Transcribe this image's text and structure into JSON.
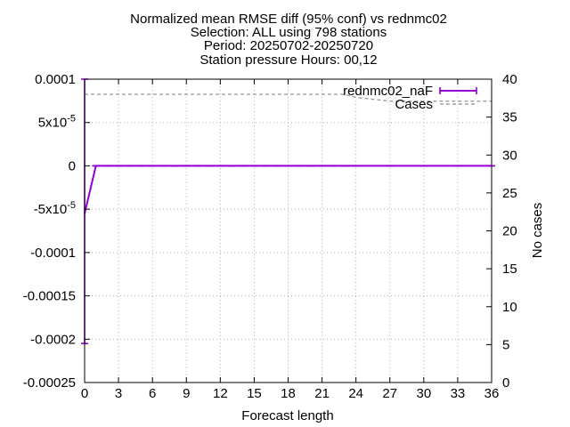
{
  "chart_data": {
    "type": "line",
    "title_lines": [
      "Normalized mean RMSE diff (95% conf) vs rednmc02",
      "Selection: ALL using   798 stations",
      "Period: 20250702-20250720",
      "Station pressure   Hours: 00,12"
    ],
    "xlabel": "Forecast length",
    "ylabel": "",
    "y2label": "No cases",
    "xlim": [
      0,
      36
    ],
    "ylim": [
      -0.00025,
      0.0001
    ],
    "y2lim": [
      0,
      40
    ],
    "xticks": [
      0,
      3,
      6,
      9,
      12,
      15,
      18,
      21,
      24,
      27,
      30,
      33,
      36
    ],
    "yticks": [
      {
        "value": 0.0001,
        "label": "0.0001"
      },
      {
        "value": 5e-05,
        "label": "5x10",
        "exp": "-5"
      },
      {
        "value": 0,
        "label": "0"
      },
      {
        "value": -5e-05,
        "label": "-5x10",
        "exp": "-5"
      },
      {
        "value": -0.0001,
        "label": "-0.0001"
      },
      {
        "value": -0.00015,
        "label": "-0.00015"
      },
      {
        "value": -0.0002,
        "label": "-0.0002"
      },
      {
        "value": -0.00025,
        "label": "-0.00025"
      }
    ],
    "y2ticks": [
      0,
      5,
      10,
      15,
      20,
      25,
      30,
      35,
      40
    ],
    "grid": true,
    "legend_position": "top-right",
    "series": [
      {
        "name": "rednmc02_naF",
        "axis": "y",
        "color": "#9400d3",
        "style": "line-errorbars",
        "x": [
          0,
          1,
          2,
          3,
          4,
          5,
          6,
          7,
          8,
          9,
          10,
          11,
          12,
          13,
          14,
          15,
          16,
          17,
          18,
          19,
          20,
          21,
          22,
          23,
          24,
          27,
          30,
          33,
          36
        ],
        "y": [
          -5.5e-05,
          0,
          0,
          0,
          0,
          0,
          0,
          0,
          0,
          0,
          0,
          0,
          0,
          0,
          0,
          0,
          0,
          0,
          0,
          0,
          0,
          0,
          0,
          0,
          0,
          0,
          0,
          0,
          0
        ],
        "err_low": [
          -0.000205,
          0,
          0,
          0,
          0,
          0,
          0,
          0,
          0,
          0,
          0,
          0,
          0,
          0,
          0,
          0,
          0,
          0,
          0,
          0,
          0,
          0,
          0,
          0,
          0,
          0,
          0,
          0,
          0
        ],
        "err_high": [
          0.0001,
          0,
          0,
          0,
          0,
          0,
          0,
          0,
          0,
          0,
          0,
          0,
          0,
          0,
          0,
          0,
          0,
          0,
          0,
          0,
          0,
          0,
          0,
          0,
          0,
          0,
          0,
          0,
          0
        ]
      },
      {
        "name": "Cases",
        "axis": "y2",
        "color": "#a0a0a0",
        "style": "dashed",
        "x": [
          0,
          3,
          6,
          9,
          12,
          15,
          18,
          21,
          23,
          24,
          27,
          30,
          33,
          36
        ],
        "y": [
          38,
          38,
          38,
          38,
          38,
          38,
          38,
          38,
          38,
          37.6,
          37.1,
          37.1,
          37.1,
          37.1
        ]
      }
    ]
  }
}
